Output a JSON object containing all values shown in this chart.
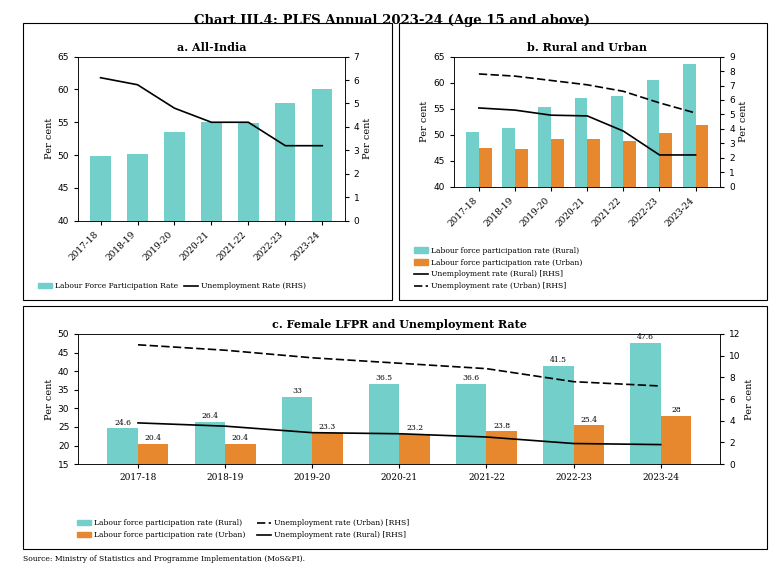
{
  "title": "Chart III.4: PLFS Annual 2023-24 (Age 15 and above)",
  "source": "Source: Ministry of Statistics and Programme Implementation (MoS&PI).",
  "years": [
    "2017-18",
    "2018-19",
    "2019-20",
    "2020-21",
    "2021-22",
    "2022-23",
    "2023-24"
  ],
  "panel_a": {
    "title": "a. All-India",
    "lfpr": [
      49.8,
      50.2,
      53.5,
      55.0,
      54.9,
      57.9,
      60.1
    ],
    "unemp_rhs": [
      6.1,
      5.8,
      4.8,
      4.2,
      4.2,
      3.2,
      3.2
    ],
    "bar_color": "#72CFCA",
    "line_color": "#000000",
    "ylim_left": [
      40,
      65
    ],
    "ylim_right": [
      0,
      7
    ],
    "yticks_left": [
      40,
      45,
      50,
      55,
      60,
      65
    ],
    "yticks_right": [
      0,
      1,
      2,
      3,
      4,
      5,
      6,
      7
    ],
    "ylabel_left": "Per cent",
    "ylabel_right": "Per cent"
  },
  "panel_b": {
    "title": "b. Rural and Urban",
    "lfpr_rural": [
      50.5,
      51.2,
      55.3,
      57.0,
      57.5,
      60.5,
      63.5
    ],
    "lfpr_urban": [
      47.5,
      47.3,
      49.2,
      49.2,
      48.8,
      50.3,
      51.8
    ],
    "unemp_rural_rhs": [
      5.45,
      5.3,
      4.95,
      4.9,
      3.85,
      2.2,
      2.2
    ],
    "unemp_urban_rhs": [
      7.8,
      7.65,
      7.35,
      7.05,
      6.6,
      5.8,
      5.1
    ],
    "bar_color_rural": "#72CFCA",
    "bar_color_urban": "#E8882E",
    "ylim_left": [
      40,
      65
    ],
    "ylim_right": [
      0,
      9
    ],
    "yticks_left": [
      40,
      45,
      50,
      55,
      60,
      65
    ],
    "yticks_right": [
      0,
      1,
      2,
      3,
      4,
      5,
      6,
      7,
      8,
      9
    ],
    "ylabel_left": "Per cent",
    "ylabel_right": "Per cent"
  },
  "panel_c": {
    "title": "c. Female LFPR and Unemployment Rate",
    "lfpr_rural": [
      24.6,
      26.4,
      33.0,
      36.5,
      36.6,
      41.5,
      47.6
    ],
    "lfpr_urban": [
      20.4,
      20.4,
      23.3,
      23.2,
      23.8,
      25.4,
      28.0
    ],
    "unemp_rural_rhs": [
      3.8,
      3.5,
      2.9,
      2.8,
      2.5,
      1.9,
      1.8
    ],
    "unemp_urban_rhs": [
      11.0,
      10.5,
      9.8,
      9.3,
      8.8,
      7.6,
      7.2
    ],
    "bar_color_rural": "#72CFCA",
    "bar_color_urban": "#E8882E",
    "ylim_left": [
      15,
      50
    ],
    "ylim_right": [
      0,
      12
    ],
    "yticks_left": [
      15,
      20,
      25,
      30,
      35,
      40,
      45,
      50
    ],
    "yticks_right": [
      0,
      2,
      4,
      6,
      8,
      10,
      12
    ],
    "ylabel_left": "Per cent",
    "ylabel_right": "Per cent",
    "labels_rural": [
      "24.6",
      "26.4",
      "33",
      "36.5",
      "36.6",
      "41.5",
      "47.6"
    ],
    "labels_urban": [
      "20.4",
      "20.4",
      "23.3",
      "23.2",
      "23.8",
      "25.4",
      "28"
    ]
  },
  "teal_color": "#72CFCA",
  "orange_color": "#E8882E"
}
